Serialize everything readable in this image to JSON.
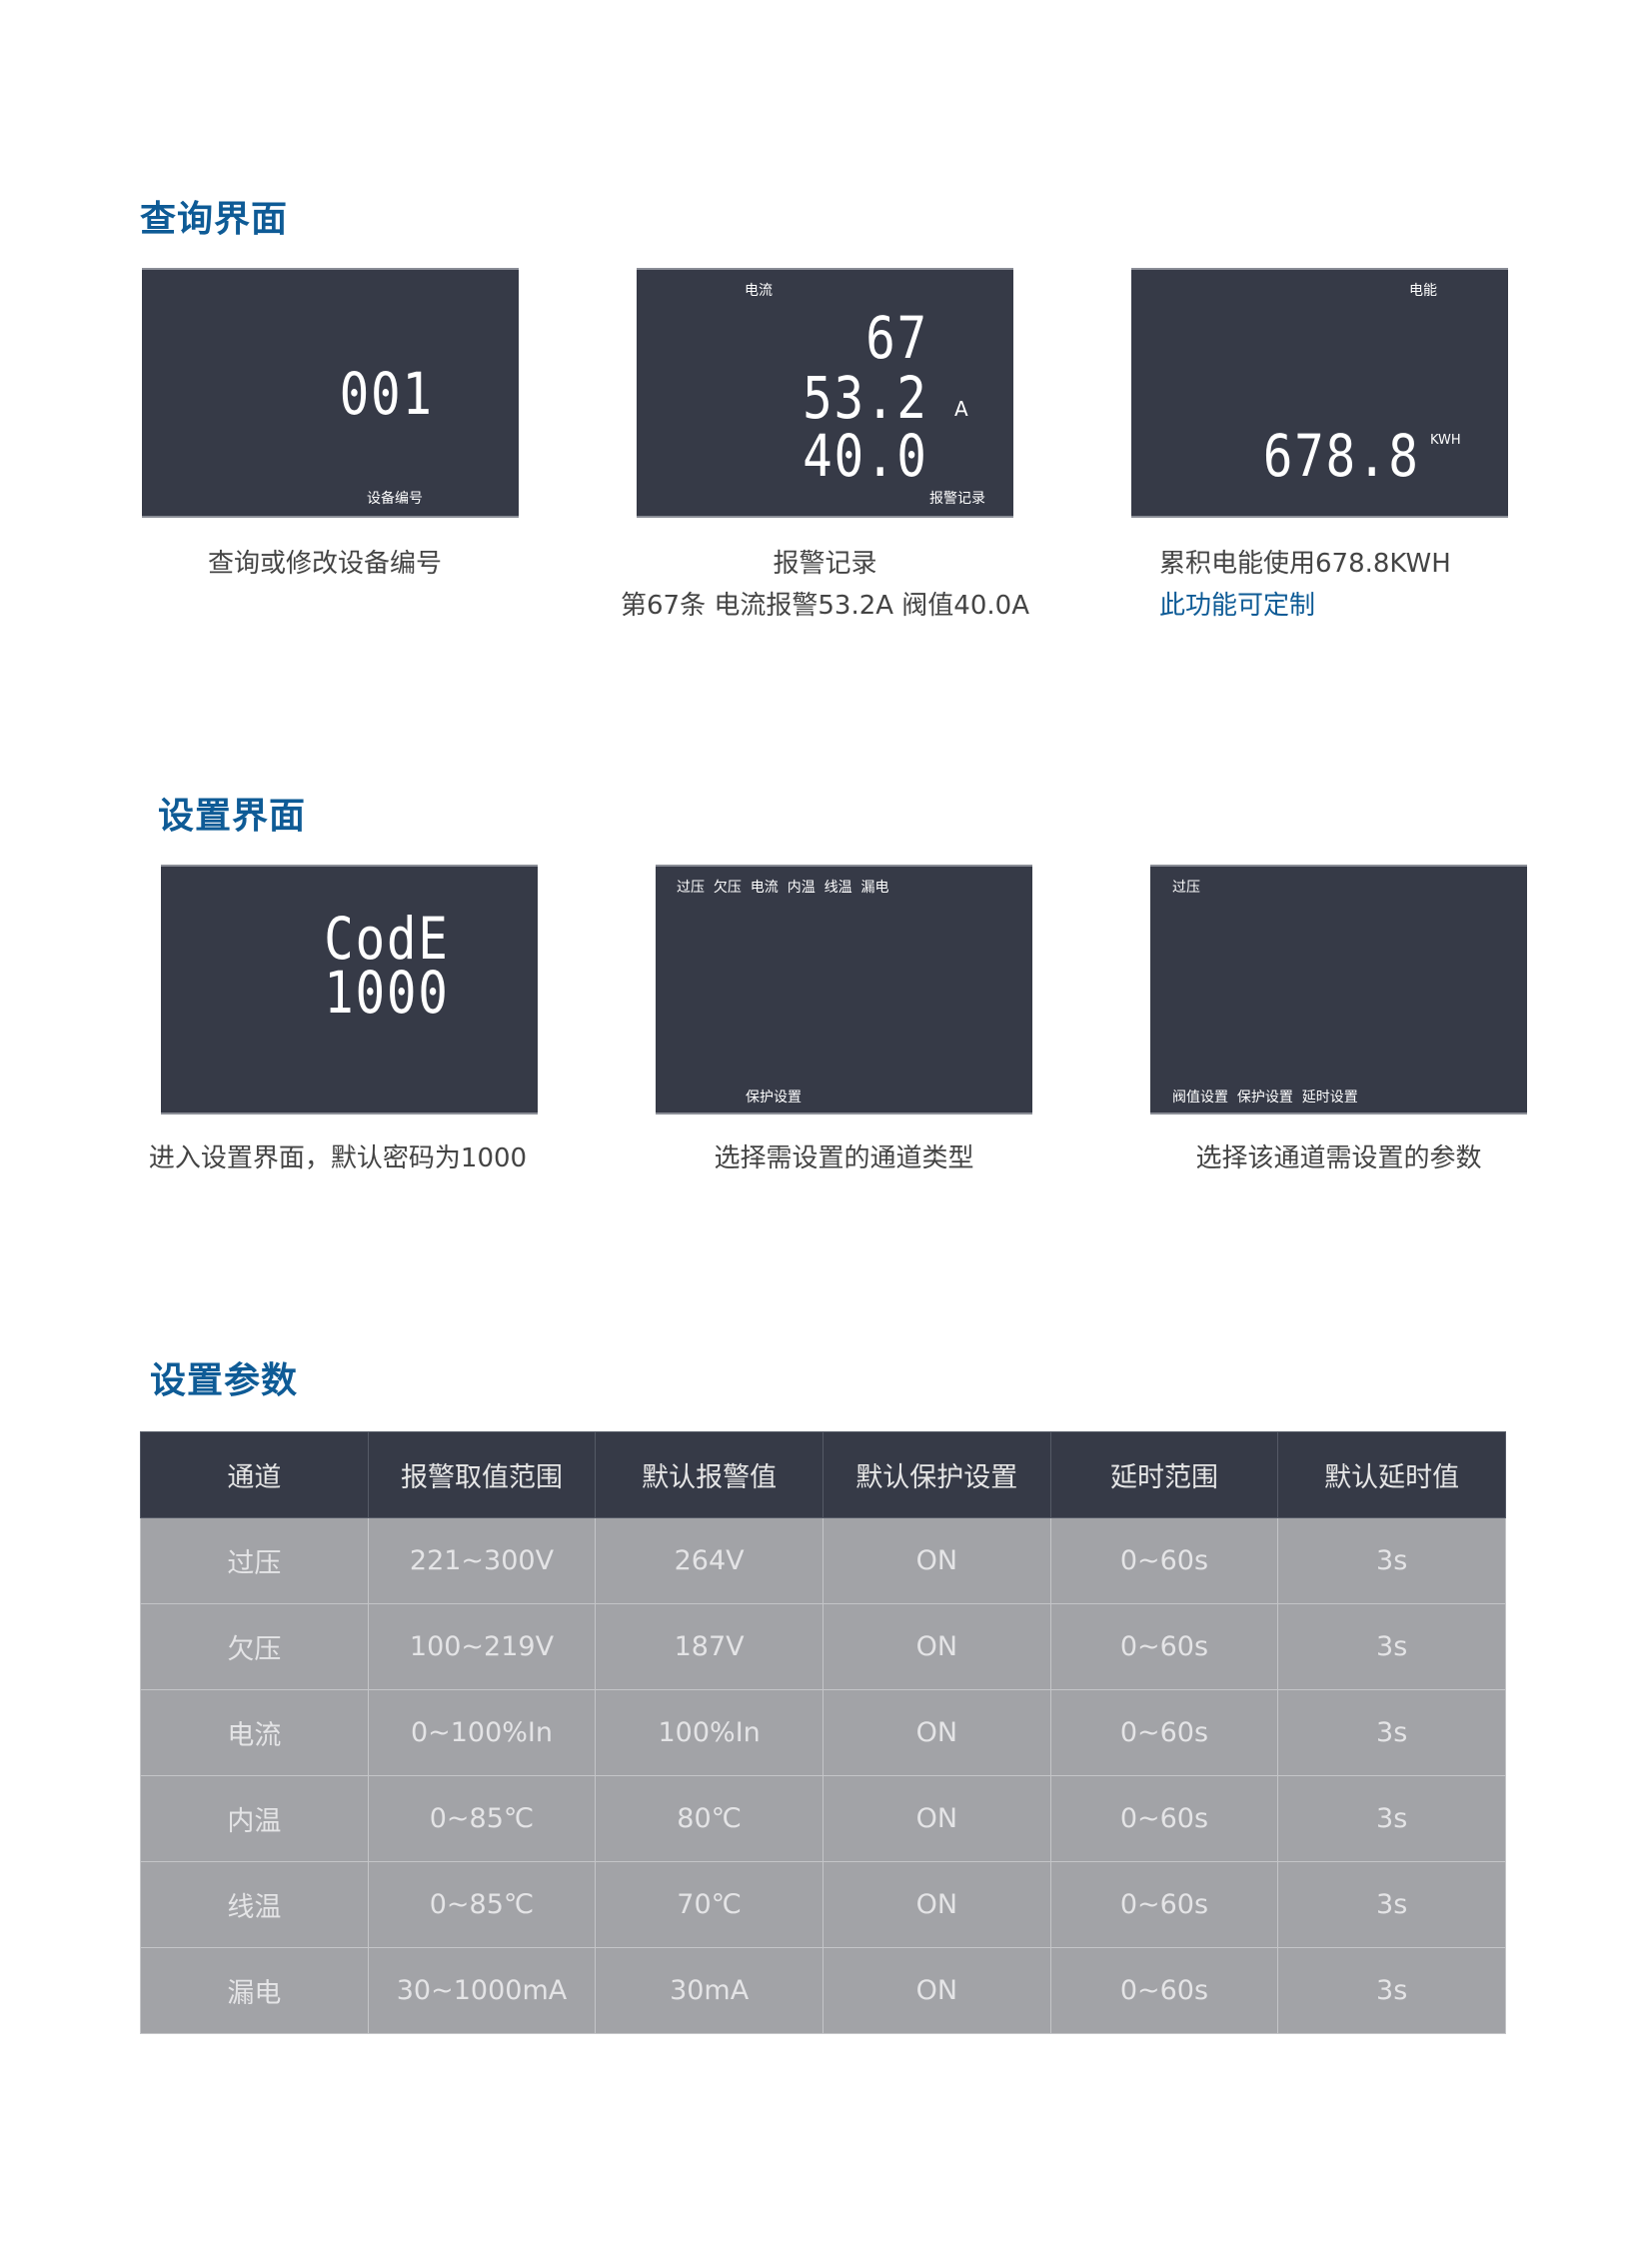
{
  "query": {
    "title": "查询界面",
    "panels": [
      {
        "value": "001",
        "bottom_label": "设备编号",
        "caption": "查询或修改设备编号"
      },
      {
        "top_label": "电流",
        "lines": [
          "67",
          "53.2",
          "40.0"
        ],
        "unit": "A",
        "bottom_label": "报警记录",
        "caption": "报警记录",
        "caption2": "第67条 电流报警53.2A 阀值40.0A"
      },
      {
        "top_label": "电能",
        "value": "678.8",
        "unit": "KWH",
        "caption": "累积电能使用678.8KWH",
        "note": "此功能可定制"
      }
    ]
  },
  "setup": {
    "title": "设置界面",
    "panels": [
      {
        "lines": [
          "CodE",
          "1000"
        ],
        "caption": "进入设置界面，默认密码为1000"
      },
      {
        "top_label": "过压  欠压  电流  内温  线温  漏电",
        "bottom_label": "保护设置",
        "caption": "选择需设置的通道类型"
      },
      {
        "top_label": "过压",
        "bottom_label": "阀值设置  保护设置  延时设置",
        "caption": "选择该通道需设置的参数"
      }
    ]
  },
  "params": {
    "title": "设置参数",
    "headers": [
      "通道",
      "报警取值范围",
      "默认报警值",
      "默认保护设置",
      "延时范围",
      "默认延时值"
    ],
    "rows": [
      [
        "过压",
        "221~300V",
        "264V",
        "ON",
        "0~60s",
        "3s"
      ],
      [
        "欠压",
        "100~219V",
        "187V",
        "ON",
        "0~60s",
        "3s"
      ],
      [
        "电流",
        "0~100%In",
        "100%In",
        "ON",
        "0~60s",
        "3s"
      ],
      [
        "内温",
        "0~85℃",
        "80℃",
        "ON",
        "0~60s",
        "3s"
      ],
      [
        "线温",
        "0~85℃",
        "70℃",
        "ON",
        "0~60s",
        "3s"
      ],
      [
        "漏电",
        "30~1000mA",
        "30mA",
        "ON",
        "0~60s",
        "3s"
      ]
    ]
  },
  "colors": {
    "accent": "#0e5b96",
    "panel": "#363a47",
    "table_row": "#a2a3a7"
  }
}
